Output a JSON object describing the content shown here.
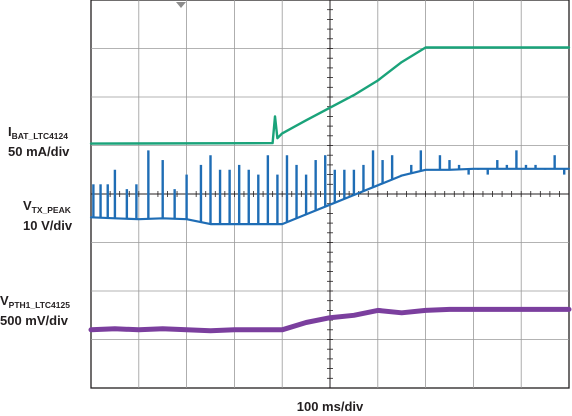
{
  "chart_data": {
    "type": "line",
    "title": "",
    "xlabel": "100 ms/div",
    "ylabel": "",
    "x_divisions": 10,
    "y_divisions": 8,
    "grid": true,
    "series": [
      {
        "name_main": "I",
        "name_sub": "BAT_LTC4124",
        "scale": "50 mA/div",
        "color": "#1aa37a",
        "x_div": [
          0.0,
          3.8,
          3.85,
          3.9,
          4.0,
          4.5,
          5.0,
          5.5,
          6.0,
          6.5,
          7.0,
          7.5,
          8.0,
          8.5,
          9.0,
          9.5,
          10.0
        ],
        "y_div": [
          5.04,
          5.05,
          5.6,
          5.15,
          5.25,
          5.52,
          5.78,
          6.04,
          6.34,
          6.72,
          7.02,
          7.02,
          7.02,
          7.02,
          7.02,
          7.02,
          7.02
        ]
      },
      {
        "name_main": "V",
        "name_sub": "TX_PEAK",
        "scale": "10 V/div",
        "color": "#1f6db5",
        "x_div": [
          0.0,
          0.5,
          1.0,
          1.5,
          2.0,
          2.5,
          3.0,
          3.5,
          4.0,
          4.5,
          5.0,
          5.5,
          6.0,
          6.5,
          7.0,
          7.5,
          8.0,
          8.5,
          9.0,
          9.5,
          10.0
        ],
        "y_div": [
          3.52,
          3.5,
          3.48,
          3.5,
          3.48,
          3.38,
          3.38,
          3.38,
          3.38,
          3.58,
          3.78,
          3.98,
          4.18,
          4.38,
          4.5,
          4.5,
          4.52,
          4.52,
          4.52,
          4.52,
          4.52
        ],
        "spikes_x_div": [
          0.05,
          0.2,
          0.35,
          0.5,
          0.75,
          0.95,
          1.2,
          1.5,
          1.75,
          2.0,
          2.3,
          2.5,
          2.7,
          2.9,
          3.1,
          3.3,
          3.5,
          3.7,
          3.9,
          4.1,
          4.3,
          4.5,
          4.7,
          4.9,
          5.1,
          5.3,
          5.5,
          5.7,
          5.9,
          6.1,
          6.3,
          6.5,
          6.7,
          6.9,
          7.1,
          7.3,
          7.5,
          7.7,
          7.9,
          8.1,
          8.3,
          8.5,
          8.7,
          8.9,
          9.1,
          9.3,
          9.5,
          9.7,
          9.9
        ],
        "spikes_y_div": [
          4.2,
          4.2,
          4.2,
          4.5,
          4.1,
          4.2,
          4.9,
          4.7,
          4.1,
          4.4,
          4.6,
          4.8,
          4.5,
          4.5,
          4.6,
          4.5,
          4.4,
          4.8,
          4.4,
          4.8,
          4.6,
          4.4,
          4.7,
          4.8,
          4.5,
          4.5,
          4.5,
          4.6,
          4.9,
          4.7,
          4.8,
          4.4,
          4.6,
          4.9,
          4.5,
          4.8,
          4.7,
          4.6,
          4.4,
          4.5,
          4.4,
          4.7,
          4.6,
          4.9,
          4.6,
          4.6,
          4.5,
          4.8,
          4.4
        ]
      },
      {
        "name_main": "V",
        "name_sub": "PTH1_LTC4125",
        "scale": "500 mV/div",
        "color": "#7b3f9e",
        "x_div": [
          0.0,
          0.5,
          1.0,
          1.5,
          2.0,
          2.5,
          3.0,
          3.5,
          4.0,
          4.5,
          5.0,
          5.5,
          6.0,
          6.5,
          7.0,
          7.5,
          8.0,
          8.5,
          9.0,
          9.5,
          10.0
        ],
        "y_div": [
          1.2,
          1.22,
          1.2,
          1.22,
          1.2,
          1.18,
          1.2,
          1.2,
          1.2,
          1.35,
          1.45,
          1.5,
          1.6,
          1.55,
          1.6,
          1.62,
          1.62,
          1.62,
          1.62,
          1.62,
          1.62
        ]
      }
    ]
  }
}
